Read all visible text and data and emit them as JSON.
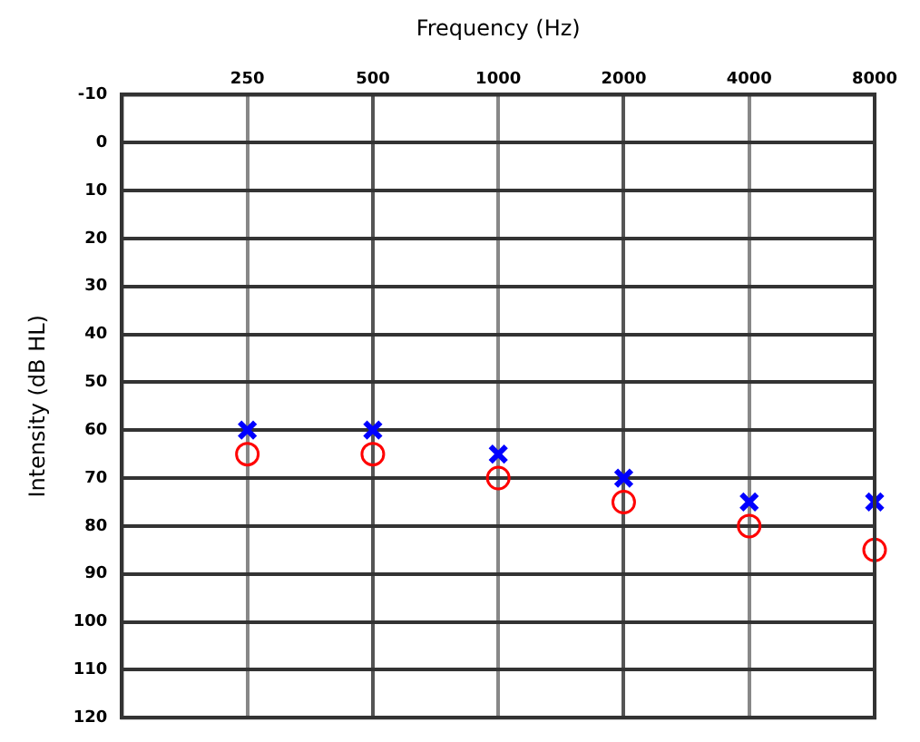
{
  "chart_data": {
    "type": "scatter",
    "xlabel": "Frequency (Hz)",
    "ylabel": "Intensity (dB HL)",
    "categories": [
      "250",
      "500",
      "1000",
      "2000",
      "4000",
      "8000"
    ],
    "ylim": [
      120,
      -10
    ],
    "yticks": [
      -10,
      0,
      10,
      20,
      30,
      40,
      50,
      60,
      70,
      80,
      90,
      100,
      110,
      120
    ],
    "grid": true,
    "legend": false,
    "series": [
      {
        "color": "#0000ff",
        "marker": "cross",
        "values": [
          60,
          60,
          65,
          70,
          75,
          75
        ]
      },
      {
        "color": "#ff0000",
        "marker": "circle",
        "values": [
          65,
          65,
          70,
          75,
          80,
          85
        ]
      }
    ]
  }
}
